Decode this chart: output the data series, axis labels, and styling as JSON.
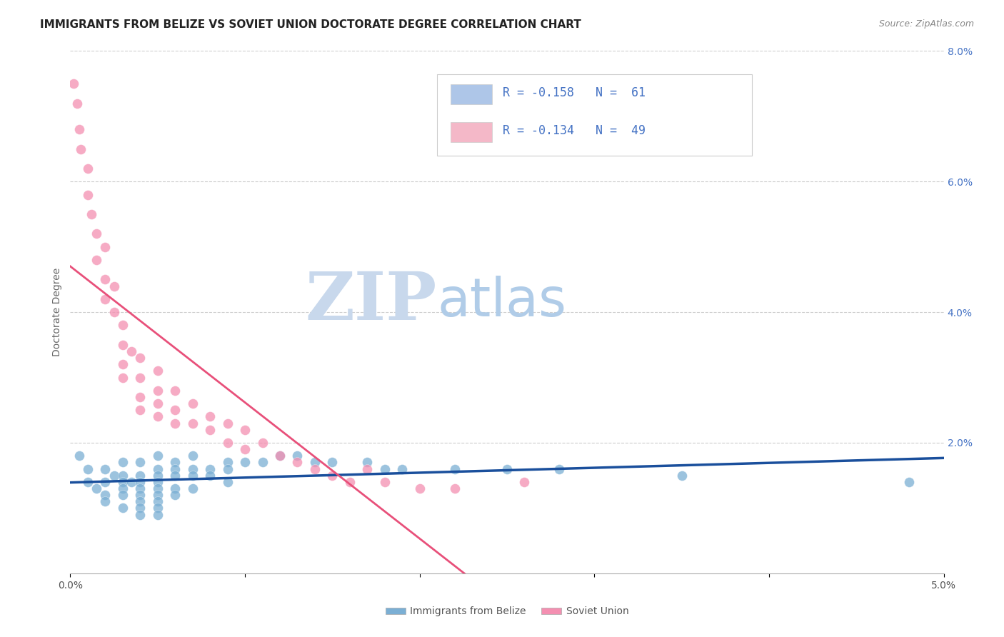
{
  "title": "IMMIGRANTS FROM BELIZE VS SOVIET UNION DOCTORATE DEGREE CORRELATION CHART",
  "source_text": "Source: ZipAtlas.com",
  "ylabel": "Doctorate Degree",
  "xlim": [
    0.0,
    0.05
  ],
  "ylim": [
    0.0,
    0.08
  ],
  "xtick_positions": [
    0.0,
    0.01,
    0.02,
    0.03,
    0.04,
    0.05
  ],
  "xticklabels": [
    "0.0%",
    "",
    "",
    "",
    "",
    "5.0%"
  ],
  "ytick_positions": [
    0.0,
    0.02,
    0.04,
    0.06,
    0.08
  ],
  "yticklabels_right": [
    "",
    "2.0%",
    "4.0%",
    "6.0%",
    "8.0%"
  ],
  "legend_label_1": "R = -0.158   N =  61",
  "legend_label_2": "R = -0.134   N =  49",
  "legend_color_1": "#aec6e8",
  "legend_color_2": "#f4b8c8",
  "legend_text_color": "#4472c4",
  "belize_color": "#7bafd4",
  "soviet_color": "#f48fb1",
  "belize_line_color": "#1a4f9c",
  "soviet_line_color": "#e8507a",
  "soviet_line_dashed_color": "#f0a0b8",
  "watermark_zip": "ZIP",
  "watermark_atlas": "atlas",
  "watermark_color_zip": "#c8d8ec",
  "watermark_color_atlas": "#b0cce8",
  "grid_color": "#cccccc",
  "belize_points_x": [
    0.0005,
    0.001,
    0.001,
    0.0015,
    0.002,
    0.002,
    0.002,
    0.002,
    0.0025,
    0.003,
    0.003,
    0.003,
    0.003,
    0.003,
    0.003,
    0.0035,
    0.004,
    0.004,
    0.004,
    0.004,
    0.004,
    0.004,
    0.004,
    0.004,
    0.005,
    0.005,
    0.005,
    0.005,
    0.005,
    0.005,
    0.005,
    0.005,
    0.005,
    0.006,
    0.006,
    0.006,
    0.006,
    0.006,
    0.007,
    0.007,
    0.007,
    0.007,
    0.008,
    0.008,
    0.009,
    0.009,
    0.009,
    0.01,
    0.011,
    0.012,
    0.013,
    0.014,
    0.015,
    0.017,
    0.018,
    0.019,
    0.022,
    0.025,
    0.028,
    0.035,
    0.048
  ],
  "belize_points_y": [
    0.018,
    0.016,
    0.014,
    0.013,
    0.016,
    0.014,
    0.012,
    0.011,
    0.015,
    0.017,
    0.015,
    0.014,
    0.013,
    0.012,
    0.01,
    0.014,
    0.017,
    0.015,
    0.014,
    0.013,
    0.012,
    0.011,
    0.01,
    0.009,
    0.018,
    0.016,
    0.015,
    0.014,
    0.013,
    0.012,
    0.011,
    0.01,
    0.009,
    0.017,
    0.016,
    0.015,
    0.013,
    0.012,
    0.018,
    0.016,
    0.015,
    0.013,
    0.016,
    0.015,
    0.017,
    0.016,
    0.014,
    0.017,
    0.017,
    0.018,
    0.018,
    0.017,
    0.017,
    0.017,
    0.016,
    0.016,
    0.016,
    0.016,
    0.016,
    0.015,
    0.014
  ],
  "soviet_points_x": [
    0.0002,
    0.0004,
    0.0005,
    0.0006,
    0.001,
    0.001,
    0.0012,
    0.0015,
    0.0015,
    0.002,
    0.002,
    0.002,
    0.0025,
    0.0025,
    0.003,
    0.003,
    0.003,
    0.003,
    0.0035,
    0.004,
    0.004,
    0.004,
    0.004,
    0.005,
    0.005,
    0.005,
    0.005,
    0.006,
    0.006,
    0.006,
    0.007,
    0.007,
    0.008,
    0.008,
    0.009,
    0.009,
    0.01,
    0.01,
    0.011,
    0.012,
    0.013,
    0.014,
    0.015,
    0.016,
    0.017,
    0.018,
    0.02,
    0.022,
    0.026
  ],
  "soviet_points_y": [
    0.075,
    0.072,
    0.068,
    0.065,
    0.062,
    0.058,
    0.055,
    0.052,
    0.048,
    0.045,
    0.042,
    0.05,
    0.044,
    0.04,
    0.038,
    0.035,
    0.032,
    0.03,
    0.034,
    0.033,
    0.03,
    0.027,
    0.025,
    0.031,
    0.028,
    0.026,
    0.024,
    0.028,
    0.025,
    0.023,
    0.026,
    0.023,
    0.024,
    0.022,
    0.023,
    0.02,
    0.022,
    0.019,
    0.02,
    0.018,
    0.017,
    0.016,
    0.015,
    0.014,
    0.016,
    0.014,
    0.013,
    0.013,
    0.014
  ],
  "title_fontsize": 11,
  "label_fontsize": 10,
  "tick_fontsize": 10,
  "legend_fontsize": 12
}
